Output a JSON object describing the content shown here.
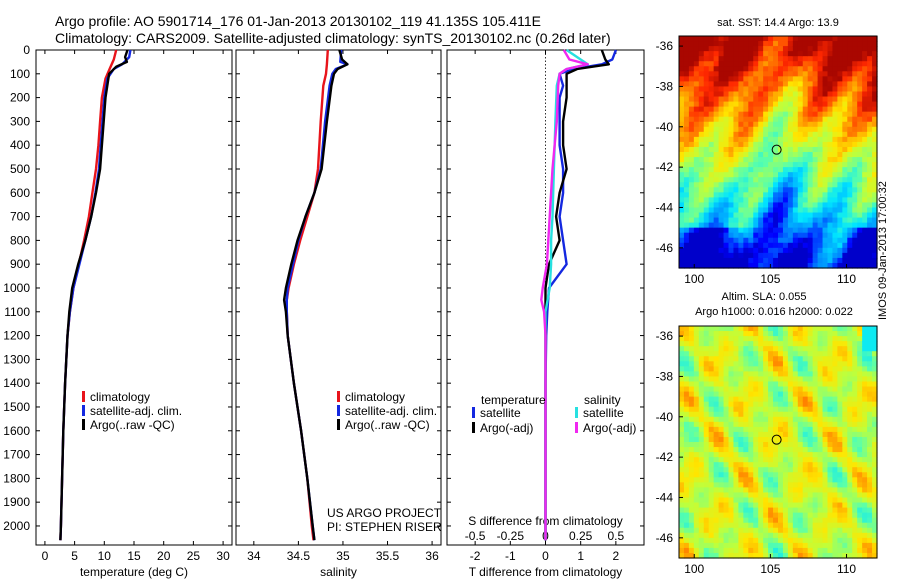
{
  "header": {
    "line1": "Argo profile: AO 5901714_176 01-Jan-2013 20130102_119 41.135S 105.411E",
    "line2": "Climatology: CARS2009. Satellite-adjusted climatology: synTS_20130102.nc (0.26d later)"
  },
  "side_label": "IMOS 09-Jan-2013 17:00:32",
  "colors": {
    "climatology": "#e8141b",
    "satellite": "#1428e0",
    "argo": "#000000",
    "sal_sat": "#28e0e0",
    "sal_argo": "#f028f0"
  },
  "chart_data": [
    {
      "id": "temperature",
      "type": "line",
      "xlabel": "temperature (deg C)",
      "ylabel": "",
      "xlim": [
        -1.5,
        31.5
      ],
      "ylim": [
        2080,
        0
      ],
      "xticks": [
        0,
        5,
        10,
        15,
        20,
        25,
        30
      ],
      "yticks": [
        0,
        100,
        200,
        300,
        400,
        500,
        600,
        700,
        800,
        900,
        1000,
        1100,
        1200,
        1300,
        1400,
        1500,
        1600,
        1700,
        1800,
        1900,
        2000
      ],
      "legend": [
        "climatology",
        "satellite-adj. clim.",
        "Argo(..raw -QC)"
      ],
      "legend_position": "lower-right",
      "series": [
        {
          "name": "climatology",
          "color": "#e8141b",
          "depth": [
            0,
            40,
            80,
            120,
            200,
            300,
            400,
            500,
            600,
            700,
            800,
            900,
            1000,
            1100,
            1200,
            1400,
            1600,
            1800,
            2000,
            2060
          ],
          "values": [
            12.0,
            11.6,
            10.9,
            10.2,
            9.6,
            9.3,
            9.0,
            8.6,
            8.0,
            7.4,
            6.6,
            5.7,
            4.8,
            4.2,
            3.8,
            3.4,
            3.1,
            2.9,
            2.7,
            2.6
          ]
        },
        {
          "name": "satellite-adj. clim.",
          "color": "#1428e0",
          "depth": [
            0,
            30,
            60,
            80,
            120,
            200,
            300,
            400,
            500,
            600,
            700,
            800,
            900,
            1000,
            1100,
            1200,
            1400,
            1600,
            1800,
            2000,
            2060
          ],
          "values": [
            14.4,
            14.2,
            13.0,
            11.6,
            10.5,
            10.0,
            9.7,
            9.4,
            9.1,
            8.5,
            7.8,
            6.8,
            5.8,
            4.8,
            4.2,
            3.8,
            3.4,
            3.1,
            2.9,
            2.7,
            2.6
          ]
        },
        {
          "name": "Argo(..raw -QC)",
          "color": "#000000",
          "depth": [
            0,
            30,
            50,
            70,
            100,
            200,
            300,
            400,
            500,
            600,
            700,
            800,
            900,
            1000,
            1100,
            1200,
            1400,
            1600,
            1800,
            2000,
            2060
          ],
          "values": [
            13.9,
            13.5,
            13.8,
            12.0,
            10.8,
            10.2,
            9.9,
            9.6,
            9.3,
            8.6,
            7.8,
            6.8,
            5.6,
            4.6,
            4.1,
            3.8,
            3.4,
            3.1,
            2.9,
            2.7,
            2.6
          ]
        }
      ]
    },
    {
      "id": "salinity",
      "type": "line",
      "xlabel": "salinity",
      "xlim": [
        33.8,
        36.1
      ],
      "ylim": [
        2080,
        0
      ],
      "xticks": [
        34,
        34.5,
        35,
        35.5,
        36
      ],
      "legend": [
        "climatology",
        "satellite-adj. clim.",
        "Argo(..raw -QC)"
      ],
      "legend_position": "lower-right",
      "annotation": [
        "US ARGO PROJECT",
        "PI: STEPHEN RISER"
      ],
      "series": [
        {
          "name": "climatology",
          "color": "#e8141b",
          "depth": [
            0,
            60,
            100,
            150,
            300,
            500,
            600,
            700,
            800,
            900,
            1000,
            1050,
            1100,
            1200,
            1400,
            1600,
            1800,
            2000,
            2060
          ],
          "values": [
            34.83,
            34.82,
            34.81,
            34.78,
            34.75,
            34.72,
            34.68,
            34.6,
            34.52,
            34.45,
            34.39,
            34.37,
            34.37,
            34.38,
            34.45,
            34.53,
            34.6,
            34.65,
            34.67
          ]
        },
        {
          "name": "satellite-adj. clim.",
          "color": "#1428e0",
          "depth": [
            0,
            50,
            60,
            80,
            100,
            150,
            300,
            500,
            600,
            700,
            800,
            900,
            1000,
            1050,
            1100,
            1200,
            1400,
            1600,
            1800,
            2000,
            2060
          ],
          "values": [
            34.98,
            34.97,
            35.05,
            34.92,
            34.88,
            34.85,
            34.8,
            34.75,
            34.68,
            34.58,
            34.5,
            34.44,
            34.38,
            34.37,
            34.37,
            34.38,
            34.45,
            34.53,
            34.6,
            34.66,
            34.68
          ]
        },
        {
          "name": "Argo(..raw -QC)",
          "color": "#000000",
          "depth": [
            0,
            40,
            60,
            80,
            100,
            150,
            300,
            500,
            600,
            700,
            800,
            900,
            1000,
            1050,
            1100,
            1200,
            1400,
            1600,
            1800,
            2000,
            2060
          ],
          "values": [
            34.96,
            34.99,
            35.05,
            34.94,
            34.9,
            34.87,
            34.82,
            34.76,
            34.68,
            34.58,
            34.49,
            34.42,
            34.36,
            34.34,
            34.36,
            34.38,
            34.45,
            34.53,
            34.6,
            34.66,
            34.68
          ]
        }
      ]
    },
    {
      "id": "difference",
      "type": "line",
      "xlabel": "T difference from climatology",
      "xlabel_top": "S difference from climatology",
      "xlim": [
        -2.8,
        2.8
      ],
      "ylim": [
        2080,
        0
      ],
      "xticks": [
        -2,
        -1,
        0,
        1,
        2
      ],
      "xticks_salinity": [
        -0.5,
        -0.25,
        0,
        0.25,
        0.5
      ],
      "legend_titles": [
        "temperature",
        "salinity"
      ],
      "legend": [
        "satellite",
        "Argo(-adj)",
        "satellite",
        "Argo(-adj)"
      ],
      "legend_position": "lower-center",
      "series": [
        {
          "name": "T satellite",
          "color": "#1428e0",
          "depth": [
            0,
            40,
            60,
            80,
            100,
            150,
            200,
            300,
            400,
            500,
            600,
            700,
            800,
            900,
            1000,
            1100,
            1200,
            1400,
            1600,
            1800,
            2000,
            2060
          ],
          "values": [
            2.0,
            1.9,
            1.6,
            0.8,
            0.4,
            0.5,
            0.4,
            0.4,
            0.4,
            0.5,
            0.5,
            0.4,
            0.5,
            0.6,
            0.1,
            0.05,
            0.02,
            0.0,
            0.0,
            0.0,
            0.0,
            0.0
          ]
        },
        {
          "name": "T Argo(-adj)",
          "color": "#000000",
          "depth": [
            0,
            40,
            60,
            80,
            100,
            150,
            200,
            300,
            400,
            500,
            600,
            700,
            800,
            900,
            1000,
            1100,
            1200,
            1400,
            1600,
            1800,
            2000,
            2060
          ],
          "values": [
            1.6,
            1.7,
            1.8,
            0.9,
            0.6,
            0.6,
            0.6,
            0.5,
            0.5,
            0.6,
            0.4,
            0.3,
            0.4,
            0.1,
            0.0,
            0.0,
            0.0,
            0.0,
            0.0,
            0.0,
            0.0,
            0.0
          ]
        },
        {
          "name": "S satellite",
          "color": "#28e0e0",
          "depth": [
            0,
            60,
            80,
            100,
            150,
            300,
            500,
            700,
            800,
            900,
            1000,
            1100,
            1200,
            1400,
            1600,
            1800,
            2000,
            2060
          ],
          "values": [
            0.15,
            0.3,
            0.15,
            0.1,
            0.08,
            0.07,
            0.06,
            0.05,
            0.04,
            0.04,
            0.03,
            0.0,
            0.0,
            0.0,
            0.0,
            0.0,
            0.0,
            0.0
          ]
        },
        {
          "name": "S Argo(-adj)",
          "color": "#f028f0",
          "depth": [
            0,
            40,
            60,
            80,
            100,
            150,
            300,
            500,
            700,
            800,
            900,
            1000,
            1050,
            1100,
            1200,
            1400,
            1600,
            1800,
            2000,
            2060
          ],
          "values": [
            0.13,
            0.17,
            0.3,
            0.15,
            0.1,
            0.09,
            0.08,
            0.05,
            0.03,
            0.02,
            0.01,
            -0.02,
            -0.03,
            -0.01,
            0.0,
            0.0,
            0.0,
            0.0,
            0.0,
            0.0
          ]
        }
      ]
    },
    {
      "id": "sst-map",
      "type": "heatmap",
      "title": "sat. SST: 14.4  Argo: 13.9",
      "xlim": [
        99,
        112
      ],
      "ylim": [
        -47,
        -35.5
      ],
      "xticks": [
        100,
        105,
        110
      ],
      "yticks": [
        -36,
        -38,
        -40,
        -42,
        -44,
        -46
      ],
      "marker": {
        "lon": 105.411,
        "lat": -41.135
      }
    },
    {
      "id": "sla-map",
      "type": "heatmap",
      "title": "Altim. SLA: 0.055",
      "subtitle": "Argo h1000: 0.016  h2000: 0.022",
      "xlim": [
        99,
        112
      ],
      "ylim": [
        -47,
        -35.5
      ],
      "xticks": [
        100,
        105,
        110
      ],
      "yticks": [
        -36,
        -38,
        -40,
        -42,
        -44,
        -46
      ],
      "marker": {
        "lon": 105.411,
        "lat": -41.135
      }
    }
  ]
}
